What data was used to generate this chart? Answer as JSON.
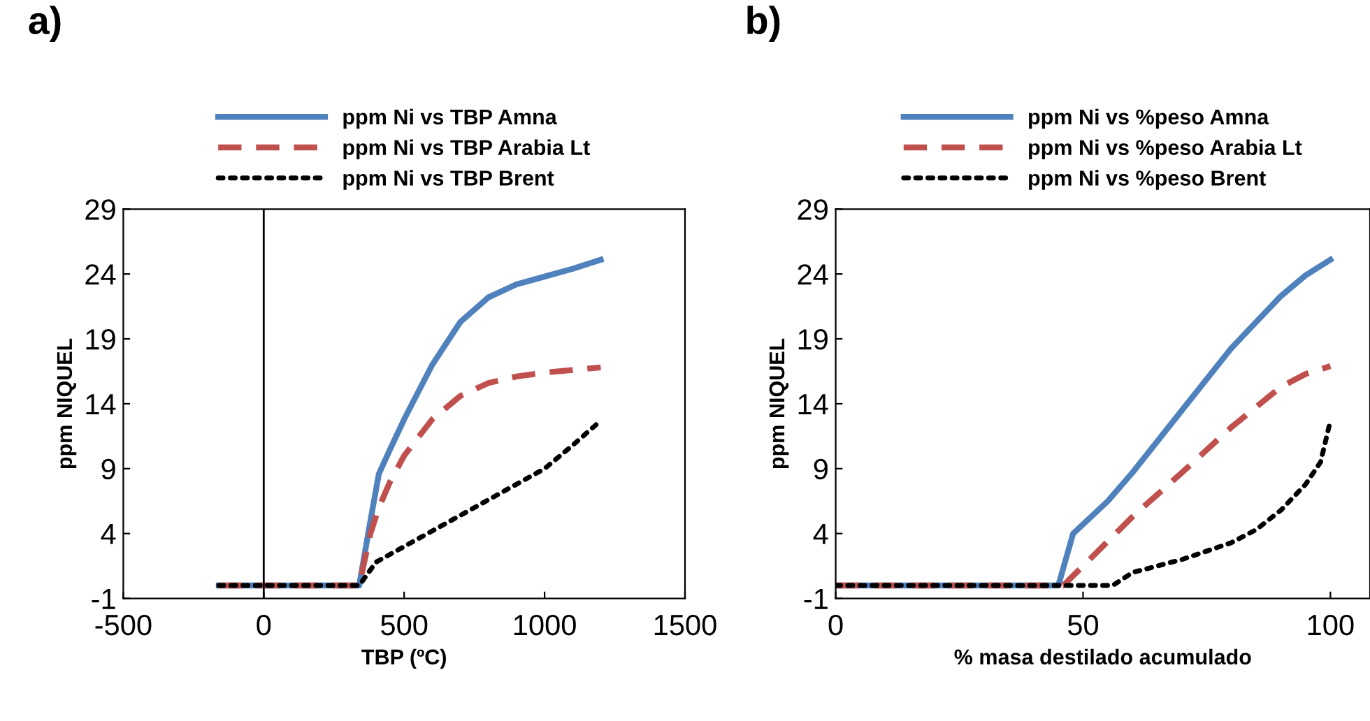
{
  "chart_data": [
    {
      "type": "line",
      "title": "a)",
      "xlabel": "TBP (ºC)",
      "ylabel": "ppm NIQUEL",
      "xlim": [
        -500,
        1500
      ],
      "xticks": [
        -500,
        0,
        500,
        1000,
        1500
      ],
      "ylim": [
        -1,
        29
      ],
      "yticks": [
        -1,
        4,
        9,
        14,
        19,
        24,
        29
      ],
      "grid": false,
      "ref_lines": [
        {
          "axis": "x",
          "value": 0,
          "color": "#000000"
        }
      ],
      "legend": "top",
      "marker": "none",
      "series": [
        {
          "name": "ppm Ni vs TBP Amna",
          "color": "#4f81bd",
          "line_style": "solid",
          "x": [
            -160,
            340,
            380,
            410,
            450,
            500,
            600,
            700,
            800,
            900,
            1000,
            1100,
            1200
          ],
          "values": [
            0,
            0,
            5,
            8.6,
            10.5,
            12.8,
            17,
            20.3,
            22.2,
            23.2,
            23.8,
            24.4,
            25.1
          ]
        },
        {
          "name": "ppm Ni vs TBP Arabia Lt",
          "color": "#c0504d",
          "line_style": "dashed",
          "x": [
            -160,
            340,
            380,
            410,
            450,
            500,
            600,
            700,
            800,
            900,
            1000,
            1100,
            1200
          ],
          "values": [
            0,
            0,
            4,
            6,
            8,
            10,
            12.8,
            14.6,
            15.6,
            16.1,
            16.4,
            16.6,
            16.8
          ]
        },
        {
          "name": "ppm Ni vs TBP Brent",
          "color": "#000000",
          "line_style": "dotted",
          "x": [
            -160,
            340,
            400,
            500,
            600,
            700,
            800,
            900,
            1000,
            1100,
            1200
          ],
          "values": [
            0,
            0,
            1.8,
            3,
            4.2,
            5.4,
            6.6,
            7.8,
            9,
            10.8,
            12.7
          ]
        }
      ]
    },
    {
      "type": "line",
      "title": "b)",
      "xlabel": "% masa destilado acumulado",
      "ylabel": "ppm NIQUEL",
      "xlim": [
        0,
        108
      ],
      "xticks": [
        0,
        50,
        100
      ],
      "ylim": [
        -1,
        29
      ],
      "yticks": [
        -1,
        4,
        9,
        14,
        19,
        24,
        29
      ],
      "grid": false,
      "legend": "top",
      "marker": "none",
      "series": [
        {
          "name": "ppm Ni vs %peso Amna",
          "color": "#4f81bd",
          "line_style": "solid",
          "x": [
            0,
            45,
            48,
            55,
            60,
            70,
            80,
            90,
            95,
            100
          ],
          "values": [
            0,
            0,
            4,
            6.5,
            8.7,
            13.5,
            18.3,
            22.3,
            23.9,
            25.1
          ]
        },
        {
          "name": "ppm Ni vs %peso Arabia Lt",
          "color": "#c0504d",
          "line_style": "dashed",
          "x": [
            0,
            46,
            50,
            60,
            70,
            80,
            90,
            95,
            100
          ],
          "values": [
            0,
            0,
            1.5,
            5.3,
            8.7,
            12.2,
            15.3,
            16.3,
            16.9
          ]
        },
        {
          "name": "ppm Ni vs %peso Brent",
          "color": "#000000",
          "line_style": "dotted",
          "x": [
            0,
            56,
            60,
            70,
            80,
            85,
            90,
            95,
            98,
            100
          ],
          "values": [
            0,
            0,
            1,
            2,
            3.3,
            4.3,
            5.8,
            7.8,
            9.5,
            12.7
          ]
        }
      ]
    }
  ]
}
